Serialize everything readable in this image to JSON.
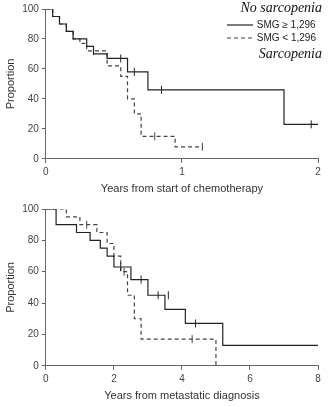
{
  "chart_data": [
    {
      "type": "line",
      "x_label": "Years from start of chemotherapy",
      "y_label": "Proportion",
      "xlim": [
        0,
        2
      ],
      "xticks": [
        0,
        1,
        2
      ],
      "ylim": [
        0,
        100
      ],
      "yticks": [
        0,
        20,
        40,
        60,
        80,
        100
      ],
      "grid": false,
      "legend": "upper right",
      "annotations": [
        "No sarcopenia",
        "Sarcopenia"
      ],
      "series": [
        {
          "name": "SMG ≥ 1,296",
          "color": "#222222",
          "line_style": "solid",
          "x": [
            0,
            0.05,
            0.1,
            0.15,
            0.2,
            0.3,
            0.35,
            0.45,
            0.6,
            0.75,
            1.75,
            2
          ],
          "values": [
            100,
            95,
            90,
            85,
            80,
            75,
            70,
            67,
            58,
            46,
            23,
            23
          ],
          "censored": {
            "x": [
              0.55,
              0.65,
              0.85,
              1.95
            ],
            "values": [
              67,
              58,
              46,
              23
            ]
          }
        },
        {
          "name": "SMG < 1,296",
          "color": "#444444",
          "line_style": "dashed",
          "x": [
            0,
            0.05,
            0.1,
            0.15,
            0.2,
            0.25,
            0.3,
            0.45,
            0.55,
            0.6,
            0.65,
            0.7,
            0.95,
            1.15
          ],
          "values": [
            100,
            95,
            90,
            85,
            80,
            77,
            72,
            62,
            55,
            40,
            30,
            15,
            8,
            8
          ],
          "censored": {
            "x": [
              0.35,
              0.8,
              1.15
            ],
            "values": [
              72,
              15,
              8
            ]
          }
        }
      ]
    },
    {
      "type": "line",
      "x_label": "Years from metastatic diagnosis",
      "y_label": "Proportion",
      "xlim": [
        0,
        8
      ],
      "xticks": [
        0,
        2,
        4,
        6,
        8
      ],
      "ylim": [
        0,
        100
      ],
      "yticks": [
        0,
        20,
        40,
        60,
        80,
        100
      ],
      "grid": false,
      "series": [
        {
          "color": "#222222",
          "line_style": "solid",
          "x": [
            0,
            0.3,
            0.9,
            1.3,
            1.6,
            1.8,
            2.0,
            2.5,
            3.0,
            3.5,
            4.1,
            5.2,
            8
          ],
          "values": [
            100,
            90,
            85,
            80,
            75,
            70,
            63,
            55,
            45,
            36,
            27,
            13,
            13
          ],
          "censored": {
            "x": [
              2.2,
              2.8,
              3.3,
              3.6,
              4.4
            ],
            "values": [
              63,
              55,
              45,
              45,
              27
            ]
          }
        },
        {
          "color": "#444444",
          "line_style": "dashed",
          "x": [
            0,
            0.6,
            1.0,
            1.5,
            1.8,
            2.0,
            2.2,
            2.4,
            2.6,
            2.8,
            5.0
          ],
          "values": [
            100,
            95,
            90,
            85,
            78,
            70,
            60,
            45,
            30,
            17,
            0
          ],
          "censored": {
            "x": [
              1.2,
              2.3,
              4.3
            ],
            "values": [
              90,
              60,
              17
            ]
          }
        }
      ]
    }
  ]
}
